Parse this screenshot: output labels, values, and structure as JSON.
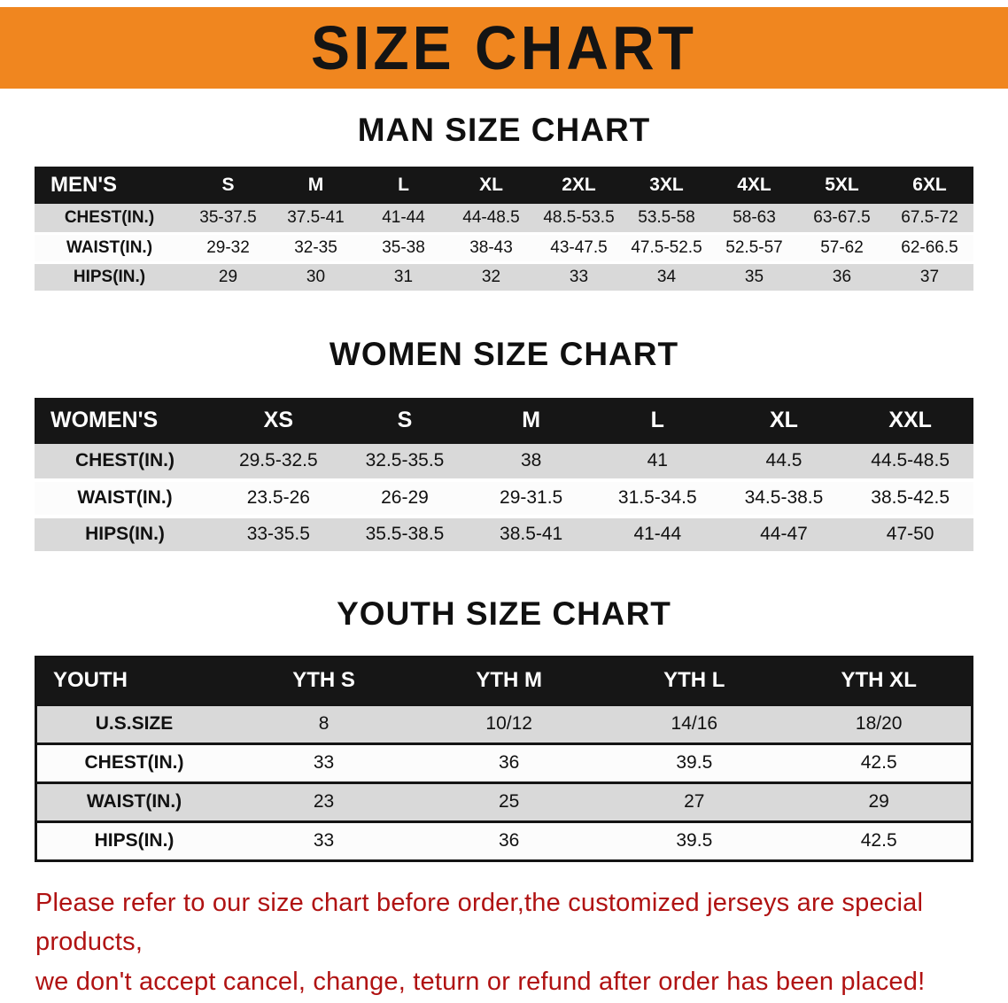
{
  "banner": {
    "title": "SIZE CHART",
    "bg_color": "#f0861f",
    "text_color": "#141414"
  },
  "chart_data": [
    {
      "type": "table",
      "name": "mens",
      "title": "MAN SIZE CHART",
      "columns": [
        "MEN'S",
        "S",
        "M",
        "L",
        "XL",
        "2XL",
        "3XL",
        "4XL",
        "5XL",
        "6XL"
      ],
      "rows": [
        [
          "CHEST(IN.)",
          "35-37.5",
          "37.5-41",
          "41-44",
          "44-48.5",
          "48.5-53.5",
          "53.5-58",
          "58-63",
          "63-67.5",
          "67.5-72"
        ],
        [
          "WAIST(IN.)",
          "29-32",
          "32-35",
          "35-38",
          "38-43",
          "43-47.5",
          "47.5-52.5",
          "52.5-57",
          "57-62",
          "62-66.5"
        ],
        [
          "HIPS(IN.)",
          "29",
          "30",
          "31",
          "32",
          "33",
          "34",
          "35",
          "36",
          "37"
        ]
      ]
    },
    {
      "type": "table",
      "name": "womens",
      "title": "WOMEN SIZE CHART",
      "columns": [
        "WOMEN'S",
        "XS",
        "S",
        "M",
        "L",
        "XL",
        "XXL"
      ],
      "rows": [
        [
          "CHEST(IN.)",
          "29.5-32.5",
          "32.5-35.5",
          "38",
          "41",
          "44.5",
          "44.5-48.5"
        ],
        [
          "WAIST(IN.)",
          "23.5-26",
          "26-29",
          "29-31.5",
          "31.5-34.5",
          "34.5-38.5",
          "38.5-42.5"
        ],
        [
          "HIPS(IN.)",
          "33-35.5",
          "35.5-38.5",
          "38.5-41",
          "41-44",
          "44-47",
          "47-50"
        ]
      ]
    },
    {
      "type": "table",
      "name": "youth",
      "title": "YOUTH SIZE CHART",
      "columns": [
        "YOUTH",
        "YTH S",
        "YTH M",
        "YTH L",
        "YTH XL"
      ],
      "rows": [
        [
          "U.S.SIZE",
          "8",
          "10/12",
          "14/16",
          "18/20"
        ],
        [
          "CHEST(IN.)",
          "33",
          "36",
          "39.5",
          "42.5"
        ],
        [
          "WAIST(IN.)",
          "23",
          "25",
          "27",
          "29"
        ],
        [
          "HIPS(IN.)",
          "33",
          "36",
          "39.5",
          "42.5"
        ]
      ]
    }
  ],
  "footer": {
    "lines": [
      "Please refer to our size chart before order,the customized jerseys are special products,",
      "we don't accept cancel, change, teturn or refund after order has been placed!"
    ],
    "color": "#b01212"
  }
}
